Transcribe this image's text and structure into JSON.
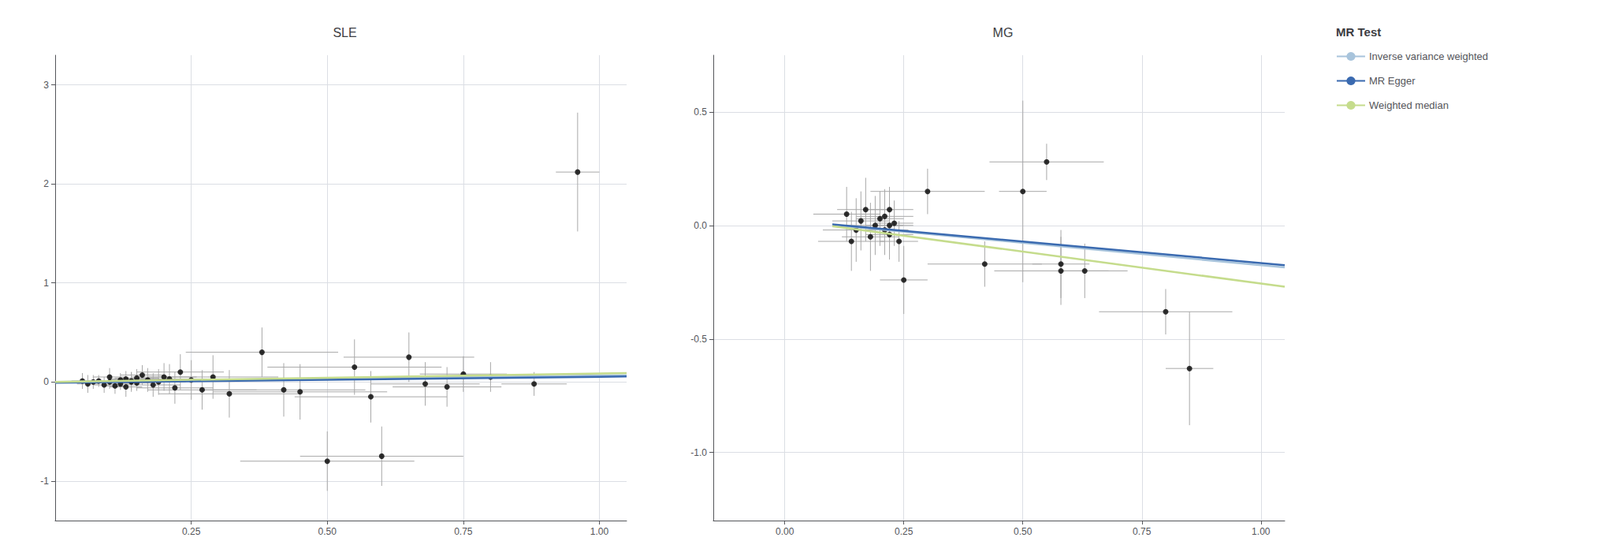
{
  "chart_data": [
    {
      "type": "scatter",
      "title": "SLE",
      "xlim": [
        0.0,
        1.05
      ],
      "ylim": [
        -1.4,
        3.3
      ],
      "xticks": [
        0.25,
        {
          "value": 0.5,
          "label": "0.50"
        },
        0.75,
        {
          "value": 1.0,
          "label": "1.00"
        }
      ],
      "yticks": [
        -1,
        0,
        1,
        2,
        3
      ],
      "grid": true,
      "color": "#000000",
      "x": [
        0.05,
        0.06,
        0.07,
        0.08,
        0.09,
        0.1,
        0.1,
        0.11,
        0.12,
        0.12,
        0.13,
        0.13,
        0.14,
        0.14,
        0.15,
        0.15,
        0.16,
        0.17,
        0.18,
        0.19,
        0.2,
        0.21,
        0.22,
        0.23,
        0.25,
        0.27,
        0.29,
        0.32,
        0.38,
        0.42,
        0.45,
        0.5,
        0.55,
        0.58,
        0.6,
        0.65,
        0.68,
        0.72,
        0.75,
        0.8,
        0.88,
        0.96
      ],
      "values": [
        0.01,
        -0.02,
        0.0,
        0.01,
        -0.03,
        0.0,
        0.05,
        -0.04,
        0.02,
        -0.02,
        0.03,
        -0.05,
        0.01,
        0.0,
        0.04,
        -0.01,
        0.07,
        0.02,
        -0.03,
        0.0,
        0.05,
        0.03,
        -0.06,
        0.1,
        0.02,
        -0.08,
        0.05,
        -0.12,
        0.3,
        -0.08,
        -0.1,
        -0.8,
        0.15,
        -0.15,
        -0.75,
        0.25,
        -0.02,
        -0.05,
        0.08,
        0.05,
        -0.02,
        2.12
      ],
      "xerr": [
        0.02,
        0.02,
        0.02,
        0.02,
        0.02,
        0.02,
        0.03,
        0.02,
        0.02,
        0.02,
        0.03,
        0.03,
        0.03,
        0.04,
        0.04,
        0.03,
        0.04,
        0.04,
        0.05,
        0.05,
        0.06,
        0.07,
        0.07,
        0.08,
        0.09,
        0.1,
        0.12,
        0.13,
        0.14,
        0.15,
        0.16,
        0.16,
        0.16,
        0.14,
        0.15,
        0.12,
        0.1,
        0.1,
        0.08,
        0.07,
        0.06,
        0.04
      ],
      "yerr": [
        0.08,
        0.09,
        0.07,
        0.06,
        0.08,
        0.07,
        0.09,
        0.08,
        0.07,
        0.06,
        0.08,
        0.1,
        0.09,
        0.1,
        0.09,
        0.08,
        0.1,
        0.12,
        0.12,
        0.13,
        0.14,
        0.15,
        0.16,
        0.18,
        0.2,
        0.2,
        0.22,
        0.24,
        0.25,
        0.27,
        0.28,
        0.3,
        0.28,
        0.26,
        0.3,
        0.25,
        0.22,
        0.2,
        0.18,
        0.15,
        0.12,
        0.6
      ],
      "series": [
        {
          "name": "Inverse variance weighted",
          "type": "line",
          "color": "#a8c4dc",
          "x": [
            0.0,
            1.05
          ],
          "values": [
            0.0,
            0.068
          ]
        },
        {
          "name": "MR Egger",
          "type": "line",
          "color": "#3a6ab0",
          "x": [
            0.0,
            1.05
          ],
          "values": [
            -0.008,
            0.055
          ]
        },
        {
          "name": "Weighted median",
          "type": "line",
          "color": "#c5dc8c",
          "x": [
            0.0,
            1.05
          ],
          "values": [
            0.0,
            0.09
          ]
        }
      ]
    },
    {
      "type": "scatter",
      "title": "MG",
      "xlim": [
        -0.15,
        1.05
      ],
      "ylim": [
        -1.3,
        0.75
      ],
      "xticks": [
        {
          "value": 0,
          "label": "0.00"
        },
        0.25,
        {
          "value": 0.5,
          "label": "0.50"
        },
        0.75,
        {
          "value": 1.0,
          "label": "1.00"
        }
      ],
      "yticks": [
        {
          "value": -1,
          "label": "-1.0"
        },
        -0.5,
        {
          "value": 0,
          "label": "0.0"
        },
        0.5
      ],
      "grid": true,
      "legend": "upper right",
      "legend_title": "MR Test",
      "color": "#000000",
      "x": [
        0.13,
        0.14,
        0.15,
        0.16,
        0.17,
        0.18,
        0.19,
        0.2,
        0.21,
        0.21,
        0.22,
        0.22,
        0.22,
        0.23,
        0.24,
        0.25,
        0.3,
        0.42,
        0.5,
        0.55,
        0.58,
        0.58,
        0.63,
        0.8,
        0.85
      ],
      "values": [
        0.05,
        -0.07,
        -0.02,
        0.02,
        0.07,
        -0.05,
        0.0,
        0.03,
        -0.02,
        0.04,
        0.07,
        -0.04,
        0.0,
        0.01,
        -0.07,
        -0.24,
        0.15,
        -0.17,
        0.15,
        0.28,
        -0.17,
        -0.2,
        -0.2,
        -0.38,
        -0.63
      ],
      "xerr": [
        0.07,
        0.07,
        0.07,
        0.06,
        0.06,
        0.06,
        0.06,
        0.05,
        0.05,
        0.06,
        0.05,
        0.05,
        0.05,
        0.04,
        0.04,
        0.05,
        0.12,
        0.12,
        0.05,
        0.12,
        0.06,
        0.14,
        0.05,
        0.14,
        0.05
      ],
      "yerr": [
        0.12,
        0.13,
        0.14,
        0.13,
        0.14,
        0.15,
        0.13,
        0.12,
        0.11,
        0.12,
        0.1,
        0.11,
        0.1,
        0.1,
        0.09,
        0.15,
        0.1,
        0.1,
        0.4,
        0.08,
        0.15,
        0.15,
        0.12,
        0.1,
        0.25
      ],
      "series": [
        {
          "name": "Inverse variance weighted",
          "type": "line",
          "color": "#a8c4dc",
          "x": [
            0.1,
            1.05
          ],
          "values": [
            0.002,
            -0.185
          ]
        },
        {
          "name": "MR Egger",
          "type": "line",
          "color": "#3a6ab0",
          "x": [
            0.1,
            1.05
          ],
          "values": [
            0.005,
            -0.175
          ]
        },
        {
          "name": "Weighted median",
          "type": "line",
          "color": "#c5dc8c",
          "x": [
            0.1,
            1.05
          ],
          "values": [
            -0.003,
            -0.27
          ]
        }
      ]
    }
  ]
}
